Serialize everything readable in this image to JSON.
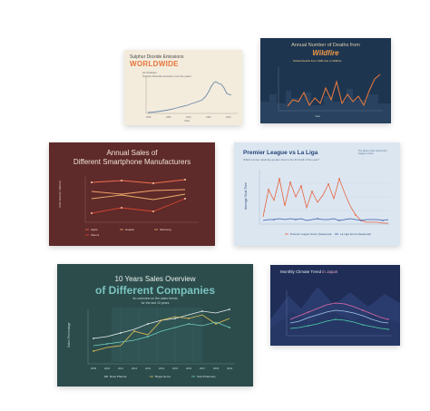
{
  "cards": {
    "sulphur": {
      "title": "Sulphur Dioxide Emissions",
      "headline": "WORLDWIDE",
      "subtitle_line1": "Air Pollution",
      "subtitle_line2": "Sulphur Dioxide emission over the years",
      "xlabel": "Year",
      "ylabel": "Sulphur Dioxide",
      "colors": {
        "background": "#f3ecdd",
        "headline": "#e8753a",
        "line": "#6b88a8"
      }
    },
    "wildfire": {
      "title": "Annual Number of Deaths from",
      "headline": "Wildfire",
      "legend": "Global Deaths from 1990 due to Wildfire",
      "xlabel": "Year",
      "ylabel": "Deaths",
      "colors": {
        "background": "#1e3550",
        "line": "#f07a3c"
      }
    },
    "smartphone": {
      "title_line1": "Annual Sales of",
      "title_line2": "Different Smartphone Manufacturers",
      "ylabel": "Units Sold (In millions)",
      "legend": [
        "Apple",
        "Huawei",
        "Samsung",
        "Xiaomi"
      ],
      "colors": {
        "background": "#5e2a2a"
      }
    },
    "football": {
      "title": "Premier League vs La Liga",
      "subtitle": "Which scores relatively greater than in the first half of the year?",
      "note": "The above chart shows both leagues scores",
      "ylabel": "Average Goal Time",
      "legend": [
        "Premier League Score (Seasonal)",
        "La Liga Score (Seasonal)"
      ],
      "colors": {
        "background": "#dbe6f1",
        "premier": "#e8623e",
        "laliga": "#3a5aa8"
      }
    },
    "companies": {
      "title": "10 Years Sales Overview",
      "headline": "of Different Companies",
      "sub_line1": "An overview on the sales trends",
      "sub_line2": "for the last 10 years",
      "ylabel": "Sales Percentage",
      "x": [
        "2009",
        "2010",
        "2011",
        "2012",
        "2013",
        "2014",
        "2015",
        "2016",
        "2017",
        "2018",
        "2019"
      ],
      "legend": [
        "Rose Pharma",
        "Brega Gems",
        "Sure Pharmacy"
      ],
      "colors": {
        "background": "#2c4c4c",
        "s1": "#e9efec",
        "s2": "#e0c054",
        "s3": "#6fd0c0"
      }
    },
    "climate": {
      "title": "Monthly Climate Trend",
      "title_suffix": "in Japan",
      "colors": {
        "background": "#1f2d57",
        "s1": "#e06aa8",
        "s2": "#9ec6e6",
        "s3": "#4fd0a6"
      }
    }
  }
}
